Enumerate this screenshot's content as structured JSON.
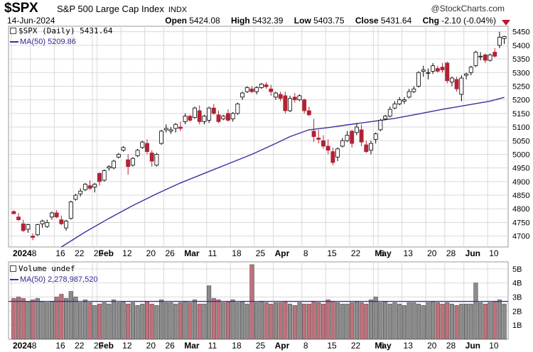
{
  "header": {
    "symbol": "$SPX",
    "name": "S&P 500 Large Cap Index",
    "exchange": "INDX",
    "logo": "@StockCharts.com",
    "date": "14-Jun-2024",
    "open_label": "Open",
    "open": "5424.08",
    "high_label": "High",
    "high": "5432.39",
    "low_label": "Low",
    "low": "5403.75",
    "close_label": "Close",
    "close": "5431.64",
    "chg_label": "Chg",
    "chg": "-2.10 (-0.04%)"
  },
  "legend": {
    "price": "$SPX (Daily) 5431.64",
    "ma": "MA(50) 5209.86",
    "volume": "Volume undef",
    "vol_ma": "MA(50) 2,278,987,520"
  },
  "colors": {
    "up": "#ffffff",
    "down": "#b22234",
    "ma": "#3a2fa0",
    "vol_up": "#8c8c8c",
    "vol_down": "#c0707a",
    "grid": "#d9d9d9"
  },
  "chart_data": {
    "type": "candlestick",
    "ylim": [
      4660,
      5470
    ],
    "yticks": [
      4700,
      4750,
      4800,
      4850,
      4900,
      4950,
      5000,
      5050,
      5100,
      5150,
      5200,
      5250,
      5300,
      5350,
      5400,
      5450
    ],
    "volume_ylim": [
      0,
      5.5
    ],
    "volume_ticks": [
      "1B",
      "2B",
      "3B",
      "4B",
      "5B"
    ],
    "x_labels": [
      "2024",
      "8",
      "16",
      "22",
      "29",
      "Feb",
      "12",
      "20",
      "26",
      "Mar",
      "11",
      "18",
      "25",
      "Apr",
      "8",
      "15",
      "22",
      "May",
      "6",
      "13",
      "20",
      "28",
      "Jun",
      "10"
    ],
    "x_label_idx": [
      0,
      4,
      9,
      13,
      17,
      18,
      23,
      28,
      32,
      36,
      41,
      46,
      51,
      55,
      61,
      66,
      71,
      76,
      77,
      82,
      87,
      91,
      95,
      100
    ],
    "ohlc": [
      [
        4790,
        4795,
        4780,
        4782
      ],
      [
        4770,
        4785,
        4755,
        4760
      ],
      [
        4745,
        4760,
        4715,
        4720
      ],
      [
        4725,
        4745,
        4712,
        4742
      ],
      [
        4700,
        4710,
        4685,
        4695
      ],
      [
        4705,
        4745,
        4700,
        4742
      ],
      [
        4745,
        4760,
        4730,
        4755
      ],
      [
        4735,
        4760,
        4730,
        4750
      ],
      [
        4770,
        4790,
        4760,
        4785
      ],
      [
        4785,
        4795,
        4765,
        4770
      ],
      [
        4760,
        4775,
        4740,
        4745
      ],
      [
        4730,
        4760,
        4720,
        4755
      ],
      [
        4765,
        4830,
        4760,
        4825
      ],
      [
        4835,
        4855,
        4830,
        4850
      ],
      [
        4855,
        4875,
        4845,
        4865
      ],
      [
        4870,
        4895,
        4865,
        4890
      ],
      [
        4885,
        4905,
        4870,
        4875
      ],
      [
        4880,
        4895,
        4860,
        4890
      ],
      [
        4930,
        4935,
        4885,
        4900
      ],
      [
        4905,
        4945,
        4900,
        4940
      ],
      [
        4950,
        4960,
        4940,
        4955
      ],
      [
        4950,
        4980,
        4945,
        4975
      ],
      [
        4990,
        5005,
        4985,
        5000
      ],
      [
        5015,
        5030,
        5010,
        5025
      ],
      [
        4980,
        5000,
        4925,
        4955
      ],
      [
        4960,
        4990,
        4955,
        4985
      ],
      [
        4995,
        5020,
        4990,
        5015
      ],
      [
        5025,
        5050,
        5020,
        5045
      ],
      [
        5040,
        5055,
        5000,
        5010
      ],
      [
        5005,
        5015,
        4955,
        4975
      ],
      [
        4960,
        5005,
        4955,
        5000
      ],
      [
        5040,
        5090,
        5035,
        5085
      ],
      [
        5090,
        5110,
        5080,
        5095
      ],
      [
        5085,
        5100,
        5075,
        5090
      ],
      [
        5095,
        5115,
        5080,
        5110
      ],
      [
        5100,
        5120,
        5085,
        5095
      ],
      [
        5120,
        5150,
        5110,
        5140
      ],
      [
        5140,
        5145,
        5120,
        5125
      ],
      [
        5135,
        5175,
        5130,
        5170
      ],
      [
        5160,
        5180,
        5110,
        5120
      ],
      [
        5120,
        5145,
        5110,
        5140
      ],
      [
        5125,
        5175,
        5115,
        5170
      ],
      [
        5170,
        5185,
        5145,
        5150
      ],
      [
        5145,
        5160,
        5115,
        5120
      ],
      [
        5130,
        5145,
        5125,
        5140
      ],
      [
        5150,
        5165,
        5120,
        5125
      ],
      [
        5130,
        5155,
        5120,
        5150
      ],
      [
        5150,
        5190,
        5145,
        5185
      ],
      [
        5210,
        5230,
        5200,
        5225
      ],
      [
        5230,
        5250,
        5225,
        5245
      ],
      [
        5240,
        5250,
        5225,
        5230
      ],
      [
        5230,
        5250,
        5220,
        5245
      ],
      [
        5245,
        5262,
        5240,
        5258
      ],
      [
        5255,
        5265,
        5240,
        5248
      ],
      [
        5240,
        5255,
        5215,
        5230
      ],
      [
        5210,
        5230,
        5200,
        5225
      ],
      [
        5220,
        5230,
        5195,
        5205
      ],
      [
        5215,
        5230,
        5150,
        5160
      ],
      [
        5160,
        5215,
        5155,
        5205
      ],
      [
        5210,
        5225,
        5190,
        5200
      ],
      [
        5200,
        5220,
        5195,
        5215
      ],
      [
        5200,
        5205,
        5150,
        5160
      ],
      [
        5160,
        5175,
        5140,
        5145
      ],
      [
        5085,
        5130,
        5045,
        5065
      ],
      [
        5060,
        5090,
        5040,
        5055
      ],
      [
        5050,
        5070,
        5020,
        5030
      ],
      [
        5030,
        5055,
        5000,
        5015
      ],
      [
        5010,
        5025,
        4960,
        4970
      ],
      [
        4990,
        5025,
        4975,
        5020
      ],
      [
        5030,
        5060,
        5025,
        5050
      ],
      [
        5050,
        5085,
        5045,
        5070
      ],
      [
        5085,
        5090,
        5025,
        5040
      ],
      [
        5080,
        5115,
        5070,
        5100
      ],
      [
        5090,
        5110,
        5030,
        5045
      ],
      [
        5035,
        5050,
        5005,
        5010
      ],
      [
        5015,
        5050,
        5000,
        5040
      ],
      [
        5055,
        5080,
        5040,
        5075
      ],
      [
        5090,
        5130,
        5085,
        5125
      ],
      [
        5130,
        5145,
        5125,
        5140
      ],
      [
        5140,
        5175,
        5135,
        5165
      ],
      [
        5170,
        5195,
        5165,
        5185
      ],
      [
        5185,
        5210,
        5180,
        5200
      ],
      [
        5195,
        5210,
        5185,
        5200
      ],
      [
        5210,
        5240,
        5205,
        5230
      ],
      [
        5230,
        5250,
        5225,
        5240
      ],
      [
        5250,
        5305,
        5245,
        5300
      ],
      [
        5305,
        5325,
        5285,
        5310
      ],
      [
        5300,
        5315,
        5275,
        5300
      ],
      [
        5305,
        5335,
        5295,
        5325
      ],
      [
        5315,
        5325,
        5300,
        5305
      ],
      [
        5320,
        5335,
        5300,
        5310
      ],
      [
        5335,
        5340,
        5260,
        5270
      ],
      [
        5265,
        5285,
        5250,
        5280
      ],
      [
        5275,
        5285,
        5230,
        5240
      ],
      [
        5220,
        5290,
        5195,
        5280
      ],
      [
        5290,
        5300,
        5275,
        5295
      ],
      [
        5300,
        5325,
        5290,
        5320
      ],
      [
        5325,
        5380,
        5320,
        5375
      ],
      [
        5360,
        5375,
        5345,
        5360
      ],
      [
        5365,
        5370,
        5335,
        5345
      ],
      [
        5345,
        5370,
        5340,
        5365
      ],
      [
        5375,
        5390,
        5355,
        5360
      ],
      [
        5400,
        5450,
        5390,
        5430
      ],
      [
        5425,
        5435,
        5405,
        5432
      ]
    ],
    "ma50": [
      [
        10,
        4660
      ],
      [
        15,
        4715
      ],
      [
        20,
        4765
      ],
      [
        25,
        4812
      ],
      [
        30,
        4855
      ],
      [
        35,
        4895
      ],
      [
        40,
        4930
      ],
      [
        45,
        4965
      ],
      [
        50,
        5000
      ],
      [
        55,
        5040
      ],
      [
        58,
        5065
      ],
      [
        62,
        5090
      ],
      [
        66,
        5098
      ],
      [
        70,
        5108
      ],
      [
        75,
        5120
      ],
      [
        80,
        5132
      ],
      [
        85,
        5148
      ],
      [
        90,
        5165
      ],
      [
        95,
        5180
      ],
      [
        100,
        5195
      ],
      [
        103,
        5209
      ]
    ],
    "volume": [
      2.9,
      3.0,
      2.9,
      2.7,
      2.8,
      2.9,
      2.7,
      2.6,
      2.7,
      3.0,
      3.2,
      2.9,
      3.4,
      3.0,
      2.6,
      2.8,
      2.6,
      2.4,
      2.5,
      2.6,
      2.5,
      2.8,
      2.6,
      2.7,
      2.5,
      2.6,
      2.4,
      2.5,
      2.7,
      2.5,
      2.4,
      2.8,
      2.6,
      2.6,
      2.5,
      2.6,
      2.7,
      2.6,
      2.8,
      2.5,
      2.5,
      3.8,
      2.9,
      2.8,
      2.6,
      2.7,
      2.8,
      2.6,
      2.7,
      2.5,
      5.3,
      2.6,
      2.7,
      2.6,
      2.5,
      2.6,
      2.6,
      2.7,
      2.5,
      2.4,
      2.6,
      2.5,
      2.5,
      2.7,
      2.6,
      2.5,
      2.8,
      2.7,
      2.6,
      2.5,
      2.5,
      2.6,
      2.7,
      2.6,
      2.5,
      2.8,
      3.0,
      2.6,
      2.7,
      2.5,
      2.6,
      2.5,
      2.4,
      2.6,
      2.6,
      2.5,
      2.4,
      2.6,
      2.7,
      2.6,
      2.5,
      2.6,
      2.5,
      2.4,
      2.5,
      2.5,
      2.5,
      4.0,
      2.6,
      2.5,
      2.6,
      2.7,
      2.8,
      2.5
    ]
  }
}
